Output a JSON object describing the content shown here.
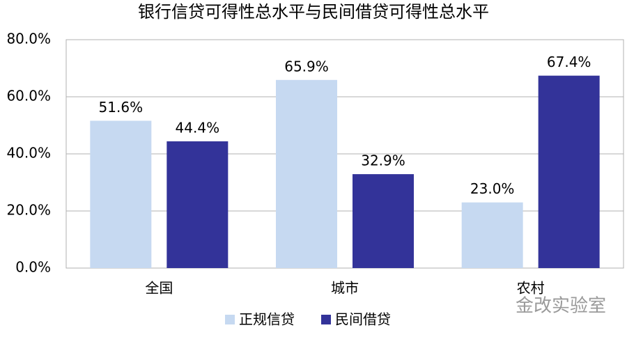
{
  "chart_data": {
    "type": "bar",
    "title": "银行信贷可得性总水平与民间借贷可得性总水平",
    "categories": [
      "全国",
      "城市",
      "农村"
    ],
    "series": [
      {
        "name": "正规信贷",
        "color": "#c6d9f1",
        "values": [
          51.6,
          65.9,
          23.0
        ],
        "value_labels": [
          "51.6%",
          "65.9%",
          "23.0%"
        ]
      },
      {
        "name": "民间借贷",
        "color": "#333399",
        "values": [
          44.4,
          32.9,
          67.4
        ],
        "value_labels": [
          "44.4%",
          "32.9%",
          "67.4%"
        ]
      }
    ],
    "ylim": [
      0,
      80
    ],
    "yticks": [
      {
        "value": 0,
        "label": "0.0%"
      },
      {
        "value": 20,
        "label": "20.0%"
      },
      {
        "value": 40,
        "label": "40.0%"
      },
      {
        "value": 60,
        "label": "60.0%"
      },
      {
        "value": 80,
        "label": "80.0%"
      }
    ],
    "grid": true,
    "legend": "bottom",
    "watermark": "金改实验室"
  }
}
